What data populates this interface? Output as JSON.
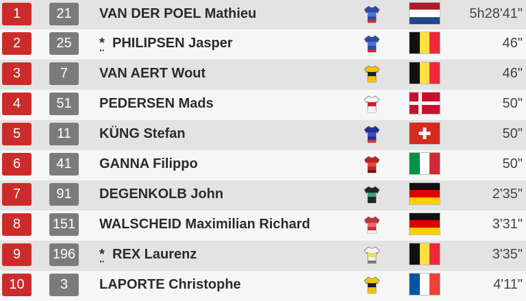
{
  "rows": [
    {
      "pos": "1",
      "bib": "21",
      "young": false,
      "name": "VAN DER POEL Mathieu",
      "time": "5h28'41\"",
      "team": "alpecin-jersey",
      "jersey": [
        "#2e4aa8",
        "#4b74d8",
        "#cf2b2b"
      ],
      "flag": "netherlands"
    },
    {
      "pos": "2",
      "bib": "25",
      "young": true,
      "name": "PHILIPSEN Jasper",
      "time": "46\"",
      "team": "alpecin-jersey",
      "jersey": [
        "#2e4aa8",
        "#4b74d8",
        "#cf2b2b"
      ],
      "flag": "belgium"
    },
    {
      "pos": "3",
      "bib": "7",
      "young": false,
      "name": "VAN AERT Wout",
      "time": "46\"",
      "team": "jumbo-visma-jersey",
      "jersey": [
        "#f2c20f",
        "#1f1f1f",
        "#f2c20f"
      ],
      "flag": "belgium"
    },
    {
      "pos": "4",
      "bib": "51",
      "young": false,
      "name": "PEDERSEN Mads",
      "time": "50\"",
      "team": "trek-segafredo-jersey",
      "jersey": [
        "#f2f2f2",
        "#c8202a",
        "#f2f2f2"
      ],
      "flag": "denmark"
    },
    {
      "pos": "5",
      "bib": "11",
      "young": false,
      "name": "KÜNG Stefan",
      "time": "50\"",
      "team": "groupama-fdj-jersey",
      "jersey": [
        "#1f2f9a",
        "#3850c8",
        "#d8333a"
      ],
      "flag": "switzerland"
    },
    {
      "pos": "6",
      "bib": "41",
      "young": false,
      "name": "GANNA Filippo",
      "time": "50\"",
      "team": "ineos-jersey",
      "jersey": [
        "#c02020",
        "#e24a3a",
        "#7a1010"
      ],
      "flag": "italy"
    },
    {
      "pos": "7",
      "bib": "91",
      "young": false,
      "name": "DEGENKOLB John",
      "time": "2'35\"",
      "team": "dsm-jersey",
      "jersey": [
        "#1d2a2a",
        "#3aa08a",
        "#1d2a2a"
      ],
      "flag": "germany"
    },
    {
      "pos": "8",
      "bib": "151",
      "young": false,
      "name": "WALSCHEID Maximilian Richard",
      "time": "3'31\"",
      "team": "cofidis-jersey",
      "jersey": [
        "#c83232",
        "#e66a6a",
        "#f2f2f2"
      ],
      "flag": "germany"
    },
    {
      "pos": "9",
      "bib": "196",
      "young": true,
      "name": "REX Laurenz",
      "time": "3'35\"",
      "team": "intermarche-jersey",
      "jersey": [
        "#f2f2f2",
        "#e8e04a",
        "#7a7a7a"
      ],
      "flag": "belgium"
    },
    {
      "pos": "10",
      "bib": "3",
      "young": false,
      "name": "LAPORTE Christophe",
      "time": "4'11\"",
      "team": "jumbo-visma-jersey",
      "jersey": [
        "#f2c20f",
        "#1f1f1f",
        "#f2c20f"
      ],
      "flag": "france"
    }
  ],
  "flags": {
    "netherlands": {
      "orientation": "h",
      "colors": [
        "#ae1c28",
        "#ffffff",
        "#21468b"
      ]
    },
    "belgium": {
      "orientation": "v",
      "colors": [
        "#111111",
        "#fae042",
        "#ed2939"
      ]
    },
    "denmark": {
      "orientation": "cross",
      "colors": [
        "#c8102e",
        "#ffffff"
      ]
    },
    "switzerland": {
      "orientation": "swiss",
      "colors": [
        "#d52b1e",
        "#ffffff"
      ]
    },
    "italy": {
      "orientation": "v",
      "colors": [
        "#009246",
        "#ffffff",
        "#ce2b37"
      ]
    },
    "germany": {
      "orientation": "h",
      "colors": [
        "#111111",
        "#dd0000",
        "#ffce00"
      ]
    },
    "france": {
      "orientation": "v",
      "colors": [
        "#0055a4",
        "#ffffff",
        "#ef4135"
      ]
    }
  },
  "colors": {
    "position_badge": "#cc2b2b",
    "bib_badge": "#7b7b7b",
    "row_odd": "#e3e3e3",
    "row_even": "#f6f6f6"
  }
}
